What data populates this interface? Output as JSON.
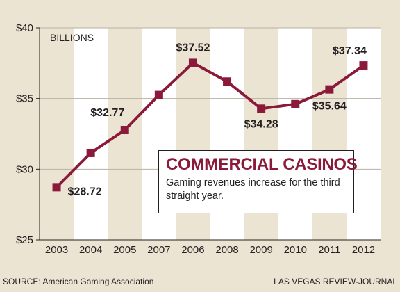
{
  "chart_data": {
    "type": "line",
    "title": "COMMERCIAL CASINOS",
    "subtitle": "Gaming revenues increase for the third straight year.",
    "unit_label": "BILLIONS",
    "categories": [
      "2003",
      "2004",
      "2005",
      "2007",
      "2006",
      "2008",
      "2009",
      "2010",
      "2011",
      "2012"
    ],
    "values": [
      28.72,
      31.15,
      32.77,
      35.25,
      37.52,
      36.2,
      34.28,
      34.6,
      35.64,
      37.34
    ],
    "data_labels": [
      {
        "index": 0,
        "text": "$28.72"
      },
      {
        "index": 2,
        "text": "$32.77"
      },
      {
        "index": 4,
        "text": "$37.52"
      },
      {
        "index": 6,
        "text": "$34.28"
      },
      {
        "index": 8,
        "text": "$35.64"
      },
      {
        "index": 9,
        "text": "$37.34"
      }
    ],
    "y_ticks": [
      "$25",
      "$30",
      "$35",
      "$40"
    ],
    "y_tick_values": [
      25,
      30,
      35,
      40
    ],
    "ylim": [
      25,
      40
    ],
    "line_color": "#8b1a3a",
    "band_color": "#ece4d3",
    "plot_bg": "#ffffff",
    "grid": true,
    "source": "SOURCE: American Gaming Association",
    "credit": "LAS VEGAS REVIEW-JOURNAL"
  }
}
